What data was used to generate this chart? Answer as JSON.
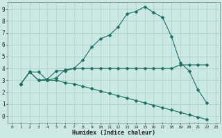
{
  "xlabel": "Humidex (Indice chaleur)",
  "bg_color": "#cce8e4",
  "line_color": "#1a6e62",
  "grid_color": "#aad4ce",
  "xlim": [
    -0.5,
    23.5
  ],
  "ylim": [
    -0.6,
    9.6
  ],
  "xticks": [
    0,
    1,
    2,
    3,
    4,
    5,
    6,
    7,
    8,
    9,
    10,
    11,
    12,
    13,
    14,
    15,
    16,
    17,
    18,
    19,
    20,
    21,
    22,
    23
  ],
  "yticks": [
    0,
    1,
    2,
    3,
    4,
    5,
    6,
    7,
    8,
    9
  ],
  "yticklabels": [
    "0",
    "1",
    "2",
    "3",
    "4",
    "5",
    "6",
    "7",
    "8",
    "9"
  ],
  "line1_x": [
    1,
    2,
    3,
    4,
    5,
    6,
    7,
    8,
    9,
    10,
    11,
    12,
    13,
    14,
    15,
    16,
    17,
    18,
    19,
    20,
    21,
    22
  ],
  "line1_y": [
    2.7,
    3.7,
    3.7,
    3.0,
    3.2,
    3.9,
    4.0,
    4.7,
    5.8,
    6.5,
    6.8,
    7.5,
    8.6,
    8.8,
    9.2,
    8.7,
    8.3,
    6.7,
    4.5,
    3.8,
    2.2,
    1.1
  ],
  "line2_x": [
    1,
    2,
    3,
    4,
    5,
    6,
    7,
    8,
    9,
    10,
    11,
    12,
    13,
    14,
    15,
    16,
    17,
    18,
    19,
    20,
    21,
    22
  ],
  "line2_y": [
    2.7,
    3.7,
    3.0,
    3.1,
    3.8,
    3.8,
    4.0,
    4.0,
    4.0,
    4.0,
    4.0,
    4.0,
    4.0,
    4.0,
    4.0,
    4.0,
    4.0,
    4.0,
    4.3,
    4.3,
    4.3,
    4.3
  ],
  "line3_x": [
    1,
    2,
    3,
    4,
    5,
    6,
    7,
    8,
    9,
    10,
    11,
    12,
    13,
    14,
    15,
    16,
    17,
    18,
    19,
    20,
    21,
    22
  ],
  "line3_y": [
    2.7,
    3.7,
    3.0,
    3.0,
    3.0,
    2.8,
    2.7,
    2.5,
    2.3,
    2.1,
    1.9,
    1.7,
    1.5,
    1.3,
    1.1,
    0.9,
    0.7,
    0.5,
    0.3,
    0.1,
    -0.1,
    -0.3
  ]
}
